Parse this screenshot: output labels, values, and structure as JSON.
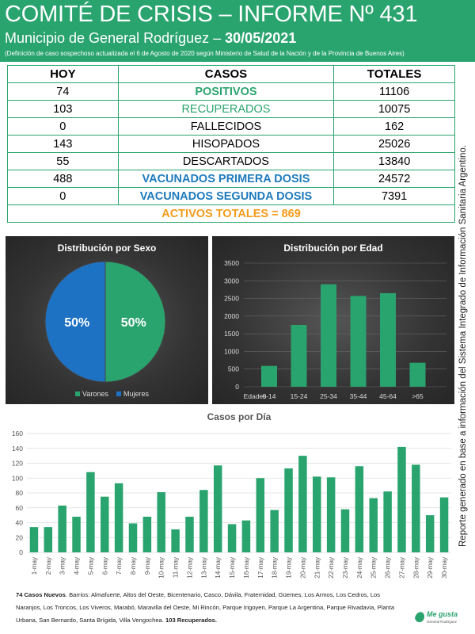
{
  "header": {
    "title": "COMITÉ DE CRISIS – INFORME Nº 431",
    "subtitle_prefix": "Municipio de General Rodríguez – ",
    "date": "30/05/2021",
    "note": "(Definición de caso sospechoso actualizada el 6 de Agosto de 2020 según Ministerio de Salud de la Nación y de la Provincia de Buenos Aires)"
  },
  "table": {
    "headers": [
      "HOY",
      "CASOS",
      "TOTALES"
    ],
    "rows": [
      {
        "hoy": "74",
        "label": "POSITIVOS",
        "total": "11106"
      },
      {
        "hoy": "103",
        "label": "RECUPERADOS",
        "total": "10075"
      },
      {
        "hoy": "0",
        "label": "FALLECIDOS",
        "total": "162"
      },
      {
        "hoy": "143",
        "label": "HISOPADOS",
        "total": "25026"
      },
      {
        "hoy": "55",
        "label": "DESCARTADOS",
        "total": "13840"
      },
      {
        "hoy": "488",
        "label": "VACUNADOS PRIMERA DOSIS",
        "total": "24572"
      },
      {
        "hoy": "0",
        "label": "VACUNADOS SEGUNDA DOSIS",
        "total": "7391"
      }
    ],
    "activos": "ACTIVOS TOTALES = 869"
  },
  "side_note": "Reporte generado en base a información del Sistema Integrado de Información Sanitaria Argentino.",
  "chart_data": [
    {
      "type": "pie",
      "title": "Distribución por Sexo",
      "categories": [
        "Varones",
        "Mujeres"
      ],
      "values": [
        50,
        50
      ],
      "labels": [
        "50%",
        "50%"
      ],
      "colors": [
        "#2aa46e",
        "#1e72c4"
      ],
      "legend": "bottom"
    },
    {
      "type": "bar",
      "title": "Distribución por Edad",
      "xlabel": "Edades",
      "categories": [
        "0-14",
        "15-24",
        "25-34",
        "35-44",
        "45-64",
        ">65"
      ],
      "values": [
        590,
        1750,
        2900,
        2570,
        2650,
        680
      ],
      "ylim": [
        0,
        3500
      ],
      "yticks": [
        0,
        500,
        1000,
        1500,
        2000,
        2500,
        3000,
        3500
      ],
      "color": "#2aa46e",
      "grid": true
    },
    {
      "type": "bar",
      "title": "Casos por Día",
      "categories": [
        "1-may",
        "2-may",
        "3-may",
        "4-may",
        "5-may",
        "6-may",
        "7-may",
        "8-may",
        "9-may",
        "10-may",
        "11-may",
        "12-may",
        "13-may",
        "14-may",
        "15-may",
        "16-may",
        "17-may",
        "18-may",
        "19-may",
        "20-may",
        "21-may",
        "22-may",
        "23-may",
        "24-may",
        "25-may",
        "26-may",
        "27-may",
        "28-may",
        "29-may",
        "30-may"
      ],
      "values": [
        34,
        34,
        63,
        48,
        108,
        75,
        93,
        39,
        48,
        81,
        31,
        48,
        84,
        117,
        38,
        43,
        100,
        57,
        113,
        130,
        102,
        101,
        58,
        116,
        73,
        82,
        142,
        118,
        50,
        74
      ],
      "ylim": [
        0,
        160
      ],
      "yticks": [
        0,
        20,
        40,
        60,
        80,
        100,
        120,
        140,
        160
      ],
      "color": "#2aa46e",
      "grid": true
    }
  ],
  "footer": {
    "new_cases_label": "74 Casos Nuevos",
    "barrios_text": ". Barrios: Almafuerte, Altos del Oeste, Bicentenario, Casco, Dávila, Fraternidad, Güemes, Los Armos, Los Cedros, Los Naranjos, Los Troncos, Los Viveros, Marabó, Maravilla del Oeste, Mi Rincón, Parque Irigoyen, Parque La Argentina, Parque Rivadavia, Planta Urbana, San Bernardo, Santa Brígida, Villa Vengochea.",
    "recovered_label": "103 Recuperados."
  },
  "logo": {
    "text": "Me gusta",
    "subtext": "General Rodríguez",
    "color": "#2aa46e"
  }
}
